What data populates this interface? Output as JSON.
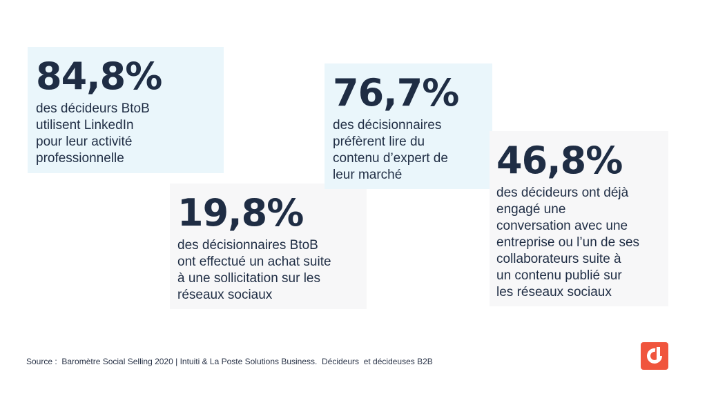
{
  "stats": [
    {
      "value": "84,8%",
      "text": "des décideurs BtoB utilisent LinkedIn pour leur activité professionnelle",
      "lines": [
        "des décideurs BtoB",
        "utilisent LinkedIn",
        "pour leur activité",
        "professionnelle"
      ]
    },
    {
      "value": "19,8%",
      "text": "des décisionnaires BtoB ont effectué un achat suite à une sollicitation sur les réseaux sociaux",
      "lines": [
        "des décisionnaires BtoB",
        "ont effectué un achat suite",
        "à une sollicitation sur les",
        "réseaux sociaux"
      ]
    },
    {
      "value": "76,7%",
      "text": "des décisionnaires préfèrent lire du contenu d’expert de leur marché",
      "lines": [
        "des décisionnaires",
        "préfèrent lire du",
        "contenu d’expert de",
        "leur marché"
      ]
    },
    {
      "value": "46,8%",
      "text": "des décideurs ont déjà engagé une conversation avec une entreprise ou l’un de ses collaborateurs suite à un contenu publié sur les réseaux sociaux",
      "lines": [
        "des décideurs ont déjà",
        "engagé une",
        "conversation avec une",
        "entreprise ou l’un de ses",
        "collaborateurs suite à",
        "un contenu publié sur",
        "les réseaux sociaux"
      ]
    }
  ],
  "source": "Source :  Baromètre Social Selling 2020 | Intuiti & La Poste Solutions Business.  Décideurs  et décideuses B2B",
  "colors": {
    "text": "#1f2d44",
    "card_blue": "#eaf6fb",
    "card_grey": "#f7f7f8",
    "logo": "#f0553d"
  },
  "logo": {
    "icon": "brand-logo-icon"
  }
}
